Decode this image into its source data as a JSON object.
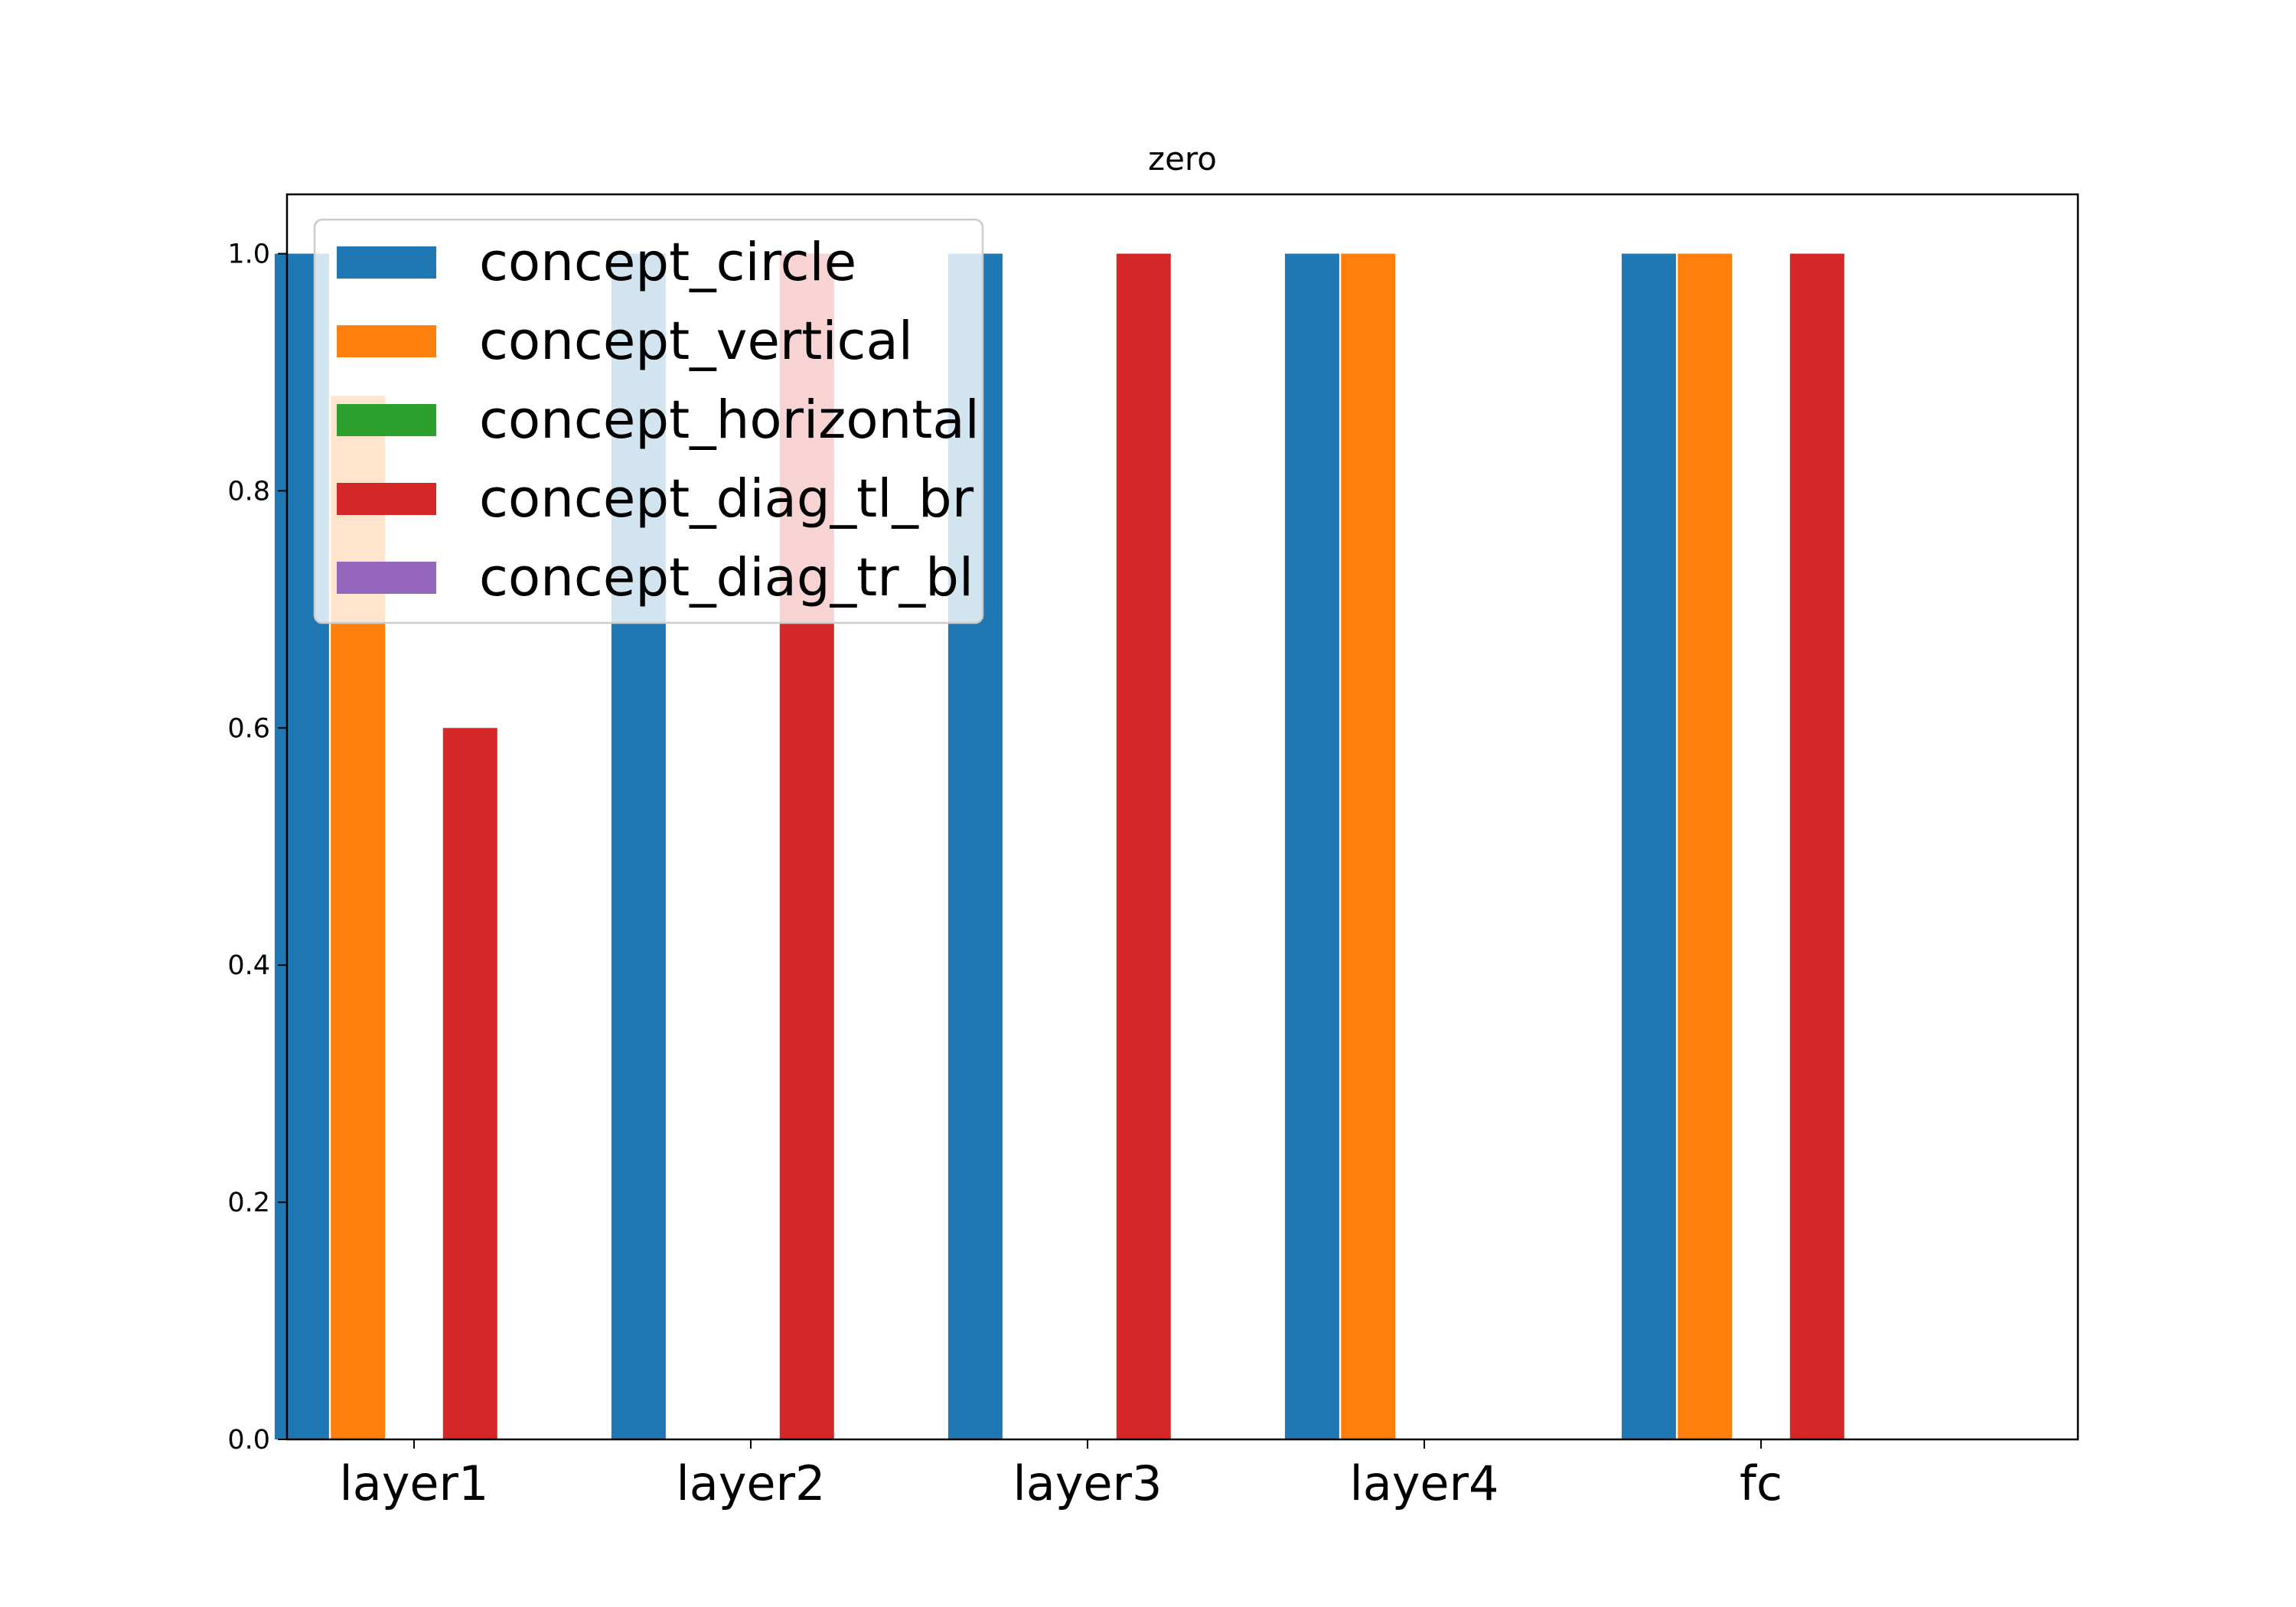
{
  "chart_data": {
    "type": "bar",
    "title": "zero",
    "xlabel": "",
    "ylabel": "",
    "categories": [
      "layer1",
      "layer2",
      "layer3",
      "layer4",
      "fc"
    ],
    "ylim": [
      0,
      1.05
    ],
    "yticks": [
      "0.0",
      "0.2",
      "0.4",
      "0.6",
      "0.8",
      "1.0"
    ],
    "legend_position": "upper-left",
    "grid": false,
    "series": [
      {
        "name": "concept_circle",
        "color": "#1f77b4",
        "values": [
          1.0,
          1.0,
          1.0,
          1.0,
          1.0
        ]
      },
      {
        "name": "concept_vertical",
        "color": "#ff7f0e",
        "values": [
          0.88,
          0.0,
          0.0,
          1.0,
          1.0
        ]
      },
      {
        "name": "concept_horizontal",
        "color": "#2ca02c",
        "values": [
          0.0,
          0.0,
          0.0,
          0.0,
          0.0
        ]
      },
      {
        "name": "concept_diag_tl_br",
        "color": "#d62728",
        "values": [
          0.6,
          1.0,
          1.0,
          0.0,
          1.0
        ]
      },
      {
        "name": "concept_diag_tr_bl",
        "color": "#9467bd",
        "values": [
          0.0,
          0.0,
          0.0,
          0.0,
          0.0
        ]
      }
    ]
  }
}
